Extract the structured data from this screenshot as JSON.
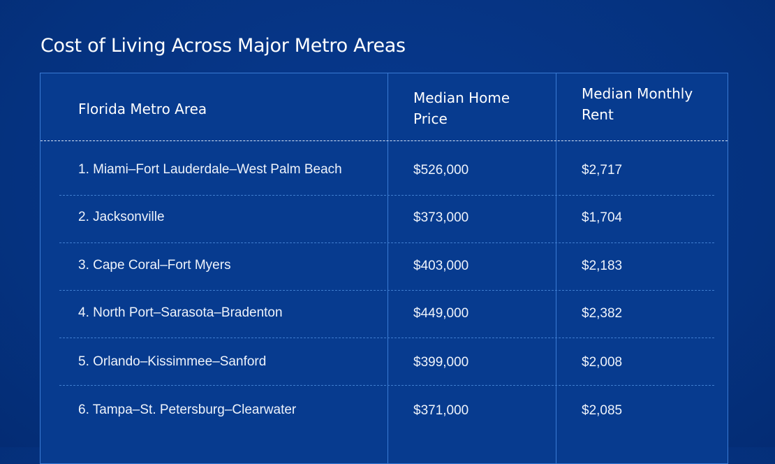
{
  "title": "Cost of Living Across Major Metro Areas",
  "colors": {
    "background": "#05327f",
    "table": "#073b8f",
    "border": "#3a7ad4",
    "text": "#ffffff"
  },
  "chart_data": {
    "type": "table",
    "title": "Cost of Living Across Major Metro Areas",
    "columns": [
      "Florida Metro Area",
      "Median Home Price",
      "Median Monthly Rent"
    ],
    "rows": [
      [
        "1. Miami–Fort Lauderdale–West Palm Beach",
        "$526,000",
        "$2,717"
      ],
      [
        "2. Jacksonville",
        "$373,000",
        "$1,704"
      ],
      [
        "3. Cape Coral–Fort Myers",
        "$403,000",
        "$2,183"
      ],
      [
        "4. North Port–Sarasota–Bradenton",
        "$449,000",
        "$2,382"
      ],
      [
        "5. Orlando–Kissimmee–Sanford",
        "$399,000",
        "$2,008"
      ],
      [
        "6. Tampa–St. Petersburg–Clearwater",
        "$371,000",
        "$2,085"
      ]
    ]
  }
}
